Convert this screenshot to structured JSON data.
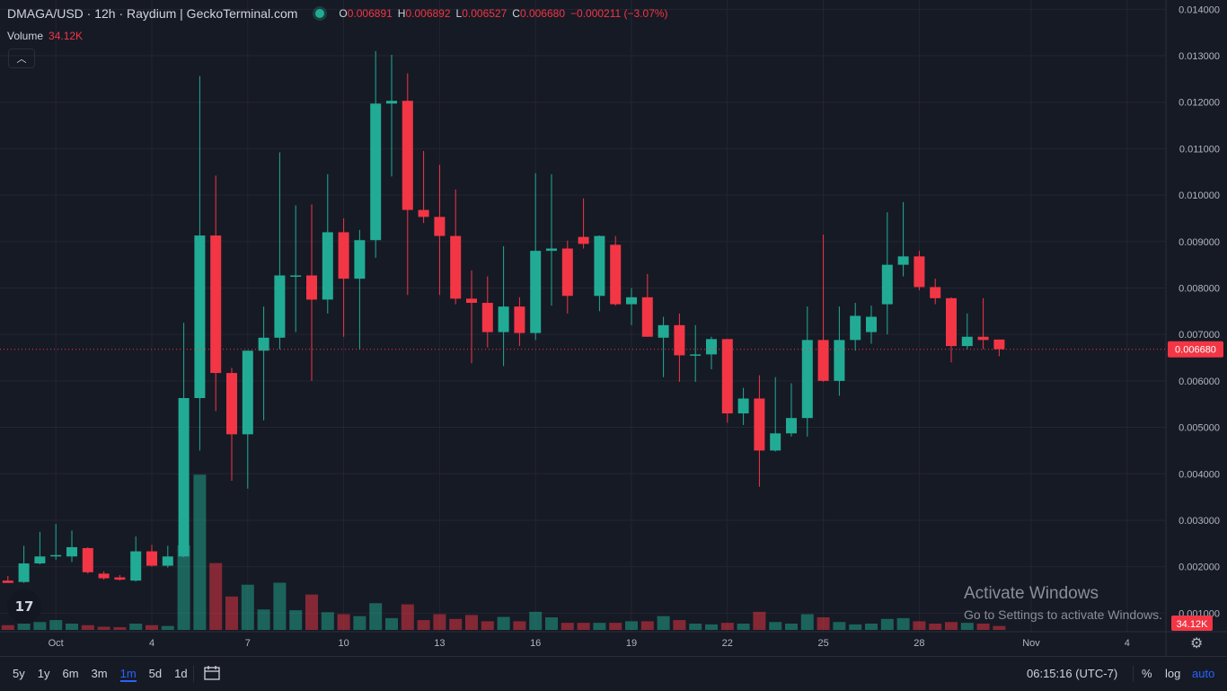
{
  "header": {
    "title": "DMAGA/USD · 12h · Raydium  |  GeckoTerminal.com",
    "o_label": "O",
    "o_value": "0.006891",
    "h_label": "H",
    "h_value": "0.006892",
    "l_label": "L",
    "l_value": "0.006527",
    "c_label": "C",
    "c_value": "0.006680",
    "change": "−0.000211 (−3.07%)"
  },
  "volume_legend": {
    "label": "Volume",
    "value": "34.12K"
  },
  "colors": {
    "up": "#22AB94",
    "down": "#F23645",
    "background": "#161A25",
    "grid": "#232632"
  },
  "chart_data": {
    "type": "candlestick",
    "ylim": [
      0.0006,
      0.0142
    ],
    "y_ticks": [
      "0.014000",
      "0.013000",
      "0.012000",
      "0.011000",
      "0.010000",
      "0.009000",
      "0.008000",
      "0.007000",
      "0.006000",
      "0.005000",
      "0.004000",
      "0.003000",
      "0.002000",
      "0.001000"
    ],
    "x_ticks": [
      {
        "label": "Oct",
        "t": -6
      },
      {
        "label": "4",
        "t": 0
      },
      {
        "label": "7",
        "t": 6
      },
      {
        "label": "10",
        "t": 12
      },
      {
        "label": "13",
        "t": 18
      },
      {
        "label": "16",
        "t": 24
      },
      {
        "label": "19",
        "t": 30
      },
      {
        "label": "22",
        "t": 36
      },
      {
        "label": "25",
        "t": 42
      },
      {
        "label": "28",
        "t": 48
      },
      {
        "label": "Nov",
        "t": 55
      },
      {
        "label": "4",
        "t": 61
      }
    ],
    "last_price": 0.00668,
    "last_price_label": "0.006680",
    "volume_axis_label": "34.12K",
    "volume_max": 40,
    "candles": [
      {
        "t": -9,
        "o": 0.0017,
        "h": 0.0018,
        "l": 0.00165,
        "c": 0.00165,
        "v": 1.2
      },
      {
        "t": -8,
        "o": 0.00167,
        "h": 0.00245,
        "l": 0.00165,
        "c": 0.00207,
        "v": 1.6
      },
      {
        "t": -7,
        "o": 0.00207,
        "h": 0.00275,
        "l": 0.00205,
        "c": 0.00222,
        "v": 2.0
      },
      {
        "t": -6,
        "o": 0.00222,
        "h": 0.00292,
        "l": 0.00215,
        "c": 0.00225,
        "v": 2.5
      },
      {
        "t": -5,
        "o": 0.00222,
        "h": 0.00278,
        "l": 0.0021,
        "c": 0.00242,
        "v": 1.6
      },
      {
        "t": -4,
        "o": 0.0024,
        "h": 0.00242,
        "l": 0.00185,
        "c": 0.00188,
        "v": 1.2
      },
      {
        "t": -3,
        "o": 0.00185,
        "h": 0.0019,
        "l": 0.00172,
        "c": 0.00175,
        "v": 0.8
      },
      {
        "t": -2,
        "o": 0.00177,
        "h": 0.00182,
        "l": 0.0017,
        "c": 0.00172,
        "v": 0.7
      },
      {
        "t": -1,
        "o": 0.0017,
        "h": 0.00265,
        "l": 0.00168,
        "c": 0.00233,
        "v": 1.6
      },
      {
        "t": 0,
        "o": 0.00233,
        "h": 0.00247,
        "l": 0.002,
        "c": 0.00202,
        "v": 1.2
      },
      {
        "t": 1,
        "o": 0.00202,
        "h": 0.00245,
        "l": 0.00198,
        "c": 0.00222,
        "v": 1.0
      },
      {
        "t": 2,
        "o": 0.00222,
        "h": 0.00725,
        "l": 0.0022,
        "c": 0.00563,
        "v": 21.5
      },
      {
        "t": 3,
        "o": 0.00563,
        "h": 0.01256,
        "l": 0.0045,
        "c": 0.00913,
        "v": 39.5
      },
      {
        "t": 4,
        "o": 0.00913,
        "h": 0.01042,
        "l": 0.00535,
        "c": 0.00617,
        "v": 17.0
      },
      {
        "t": 5,
        "o": 0.00617,
        "h": 0.00628,
        "l": 0.00385,
        "c": 0.00485,
        "v": 8.5
      },
      {
        "t": 6,
        "o": 0.00485,
        "h": 0.00665,
        "l": 0.00368,
        "c": 0.00665,
        "v": 11.5
      },
      {
        "t": 7,
        "o": 0.00665,
        "h": 0.0076,
        "l": 0.00515,
        "c": 0.00693,
        "v": 5.2
      },
      {
        "t": 8,
        "o": 0.00693,
        "h": 0.01092,
        "l": 0.00668,
        "c": 0.00827,
        "v": 12.0
      },
      {
        "t": 9,
        "o": 0.00827,
        "h": 0.00978,
        "l": 0.00705,
        "c": 0.00827,
        "v": 5.0
      },
      {
        "t": 10,
        "o": 0.00827,
        "h": 0.0098,
        "l": 0.006,
        "c": 0.00775,
        "v": 9.0
      },
      {
        "t": 11,
        "o": 0.00775,
        "h": 0.01045,
        "l": 0.00745,
        "c": 0.0092,
        "v": 4.5
      },
      {
        "t": 12,
        "o": 0.0092,
        "h": 0.0095,
        "l": 0.00695,
        "c": 0.0082,
        "v": 4.0
      },
      {
        "t": 13,
        "o": 0.0082,
        "h": 0.00925,
        "l": 0.00668,
        "c": 0.00903,
        "v": 3.5
      },
      {
        "t": 14,
        "o": 0.00903,
        "h": 0.0131,
        "l": 0.00865,
        "c": 0.01197,
        "v": 6.8
      },
      {
        "t": 15,
        "o": 0.01197,
        "h": 0.01302,
        "l": 0.0104,
        "c": 0.01203,
        "v": 3.0
      },
      {
        "t": 16,
        "o": 0.01203,
        "h": 0.01262,
        "l": 0.00785,
        "c": 0.00968,
        "v": 6.5
      },
      {
        "t": 17,
        "o": 0.00968,
        "h": 0.01095,
        "l": 0.0094,
        "c": 0.00953,
        "v": 2.5
      },
      {
        "t": 18,
        "o": 0.00953,
        "h": 0.01065,
        "l": 0.00785,
        "c": 0.00912,
        "v": 4.0
      },
      {
        "t": 19,
        "o": 0.00912,
        "h": 0.01012,
        "l": 0.00765,
        "c": 0.00777,
        "v": 2.8
      },
      {
        "t": 20,
        "o": 0.00777,
        "h": 0.00838,
        "l": 0.00638,
        "c": 0.00768,
        "v": 3.8
      },
      {
        "t": 21,
        "o": 0.00768,
        "h": 0.00825,
        "l": 0.00672,
        "c": 0.00705,
        "v": 2.2
      },
      {
        "t": 22,
        "o": 0.00705,
        "h": 0.0089,
        "l": 0.00632,
        "c": 0.0076,
        "v": 3.3
      },
      {
        "t": 23,
        "o": 0.0076,
        "h": 0.0078,
        "l": 0.00675,
        "c": 0.00703,
        "v": 2.2
      },
      {
        "t": 24,
        "o": 0.00703,
        "h": 0.01047,
        "l": 0.00688,
        "c": 0.0088,
        "v": 4.6
      },
      {
        "t": 25,
        "o": 0.0088,
        "h": 0.01045,
        "l": 0.00762,
        "c": 0.00885,
        "v": 3.2
      },
      {
        "t": 26,
        "o": 0.00885,
        "h": 0.00902,
        "l": 0.00745,
        "c": 0.00783,
        "v": 1.8
      },
      {
        "t": 27,
        "o": 0.0091,
        "h": 0.00993,
        "l": 0.00885,
        "c": 0.00895,
        "v": 1.8
      },
      {
        "t": 28,
        "o": 0.00783,
        "h": 0.00913,
        "l": 0.0075,
        "c": 0.00912,
        "v": 1.8
      },
      {
        "t": 29,
        "o": 0.00893,
        "h": 0.00912,
        "l": 0.00762,
        "c": 0.00765,
        "v": 1.8
      },
      {
        "t": 30,
        "o": 0.00765,
        "h": 0.008,
        "l": 0.0072,
        "c": 0.0078,
        "v": 2.2
      },
      {
        "t": 31,
        "o": 0.0078,
        "h": 0.0083,
        "l": 0.00695,
        "c": 0.00695,
        "v": 2.2
      },
      {
        "t": 32,
        "o": 0.00693,
        "h": 0.00738,
        "l": 0.00608,
        "c": 0.0072,
        "v": 3.5
      },
      {
        "t": 33,
        "o": 0.0072,
        "h": 0.00745,
        "l": 0.00598,
        "c": 0.00655,
        "v": 2.5
      },
      {
        "t": 34,
        "o": 0.00655,
        "h": 0.0072,
        "l": 0.00598,
        "c": 0.00657,
        "v": 1.6
      },
      {
        "t": 35,
        "o": 0.00657,
        "h": 0.00695,
        "l": 0.00625,
        "c": 0.0069,
        "v": 1.4
      },
      {
        "t": 36,
        "o": 0.0069,
        "h": 0.0069,
        "l": 0.0051,
        "c": 0.0053,
        "v": 1.8
      },
      {
        "t": 37,
        "o": 0.0053,
        "h": 0.00585,
        "l": 0.00505,
        "c": 0.00562,
        "v": 1.6
      },
      {
        "t": 38,
        "o": 0.00562,
        "h": 0.00612,
        "l": 0.00372,
        "c": 0.0045,
        "v": 4.6
      },
      {
        "t": 39,
        "o": 0.0045,
        "h": 0.00608,
        "l": 0.00448,
        "c": 0.00487,
        "v": 2.0
      },
      {
        "t": 40,
        "o": 0.00487,
        "h": 0.00595,
        "l": 0.0048,
        "c": 0.0052,
        "v": 1.6
      },
      {
        "t": 41,
        "o": 0.0052,
        "h": 0.0076,
        "l": 0.0048,
        "c": 0.00688,
        "v": 4.0
      },
      {
        "t": 42,
        "o": 0.00688,
        "h": 0.00915,
        "l": 0.00598,
        "c": 0.006,
        "v": 3.2
      },
      {
        "t": 43,
        "o": 0.006,
        "h": 0.0076,
        "l": 0.00568,
        "c": 0.00688,
        "v": 2.0
      },
      {
        "t": 44,
        "o": 0.00688,
        "h": 0.00768,
        "l": 0.00665,
        "c": 0.0074,
        "v": 1.4
      },
      {
        "t": 45,
        "o": 0.00705,
        "h": 0.00762,
        "l": 0.0068,
        "c": 0.00738,
        "v": 1.6
      },
      {
        "t": 46,
        "o": 0.00765,
        "h": 0.00963,
        "l": 0.007,
        "c": 0.0085,
        "v": 2.8
      },
      {
        "t": 47,
        "o": 0.0085,
        "h": 0.00985,
        "l": 0.00825,
        "c": 0.00868,
        "v": 3.0
      },
      {
        "t": 48,
        "o": 0.00868,
        "h": 0.0088,
        "l": 0.00795,
        "c": 0.00802,
        "v": 2.2
      },
      {
        "t": 49,
        "o": 0.00802,
        "h": 0.0082,
        "l": 0.00765,
        "c": 0.00778,
        "v": 1.6
      },
      {
        "t": 50,
        "o": 0.00778,
        "h": 0.0078,
        "l": 0.0064,
        "c": 0.00675,
        "v": 2.0
      },
      {
        "t": 51,
        "o": 0.00675,
        "h": 0.00745,
        "l": 0.00668,
        "c": 0.00695,
        "v": 1.8
      },
      {
        "t": 52,
        "o": 0.00695,
        "h": 0.00778,
        "l": 0.00668,
        "c": 0.00688,
        "v": 1.6
      },
      {
        "t": 53,
        "o": 0.00689,
        "h": 0.00689,
        "l": 0.00653,
        "c": 0.00668,
        "v": 1.0
      }
    ]
  },
  "bottom_bar": {
    "ranges": [
      "5y",
      "1y",
      "6m",
      "3m",
      "1m",
      "5d",
      "1d"
    ],
    "active_range": "1m",
    "clock": "06:15:16 (UTC-7)",
    "percent": "%",
    "log": "log",
    "auto": "auto"
  },
  "watermark": {
    "line1": "Activate Windows",
    "line2": "Go to Settings to activate Windows."
  },
  "icons": {
    "logo": "tv-logo",
    "collapse": "chevron-up-icon",
    "settings": "gear-icon",
    "date-range": "calendar-icon"
  }
}
